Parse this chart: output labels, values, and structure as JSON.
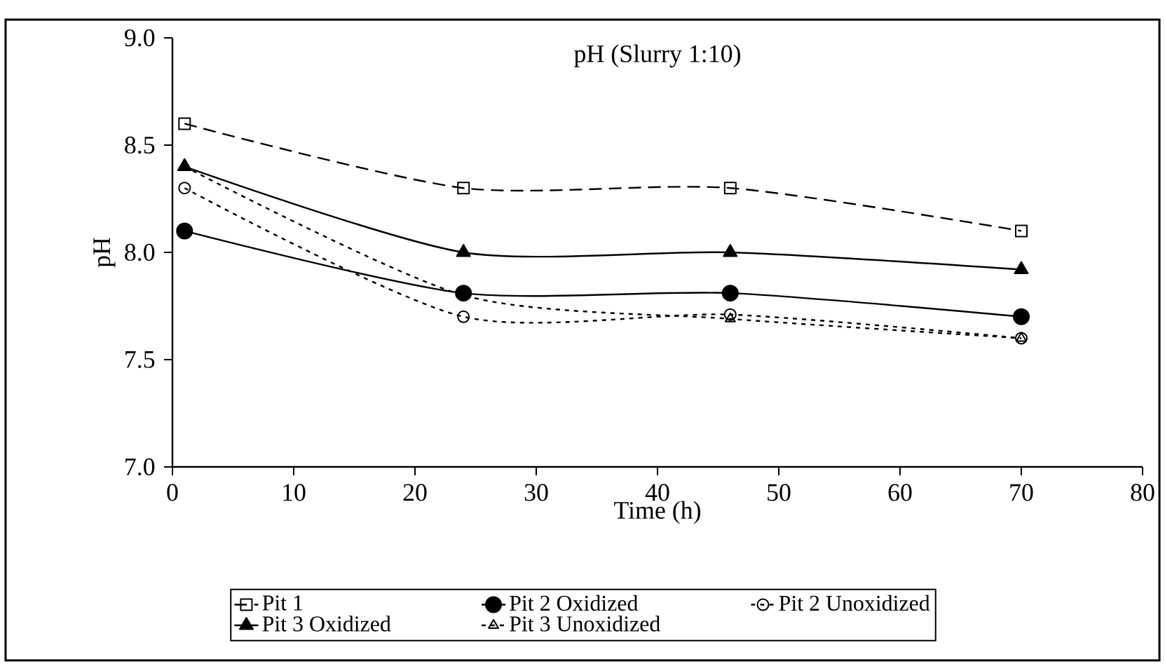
{
  "chart_data": {
    "type": "line",
    "title": "pH (Slurry 1:10)",
    "xlabel": "Time (h)",
    "ylabel": "pH",
    "x": [
      1,
      24,
      46,
      70
    ],
    "series": [
      {
        "name": "Pit 1",
        "color": "#000000",
        "marker": "square",
        "line_style": "dashed",
        "values": [
          8.6,
          8.3,
          8.3,
          8.1
        ]
      },
      {
        "name": "Pit 2 Oxidized",
        "color": "#000000",
        "marker": "circle",
        "line_style": "solid",
        "values": [
          8.1,
          7.81,
          7.81,
          7.7
        ]
      },
      {
        "name": "Pit 2 Unoxidized",
        "color": "#000000",
        "marker": "circle",
        "line_style": "dotted",
        "values": [
          8.3,
          7.7,
          7.71,
          7.6
        ]
      },
      {
        "name": "Pit 3 Oxidized",
        "color": "#000000",
        "marker": "triangle",
        "line_style": "solid",
        "values": [
          8.4,
          8.0,
          8.0,
          7.92
        ]
      },
      {
        "name": "Pit 3 Unoxidized",
        "color": "#000000",
        "marker": "triangle",
        "line_style": "dotted",
        "values": [
          8.4,
          7.8,
          7.69,
          7.6
        ]
      }
    ],
    "xlim": [
      0,
      80
    ],
    "xticks": [
      0,
      10,
      20,
      30,
      40,
      50,
      60,
      70,
      80
    ],
    "ylim": [
      7,
      9
    ],
    "yticks": [
      {
        "value": 7,
        "label": "7.0"
      },
      {
        "value": 7.5,
        "label": "7.5"
      },
      {
        "value": 8,
        "label": "8.0"
      },
      {
        "value": 8.5,
        "label": "8.5"
      },
      {
        "value": 9,
        "label": "9.0"
      }
    ],
    "grid": false,
    "legend": "bottom"
  }
}
